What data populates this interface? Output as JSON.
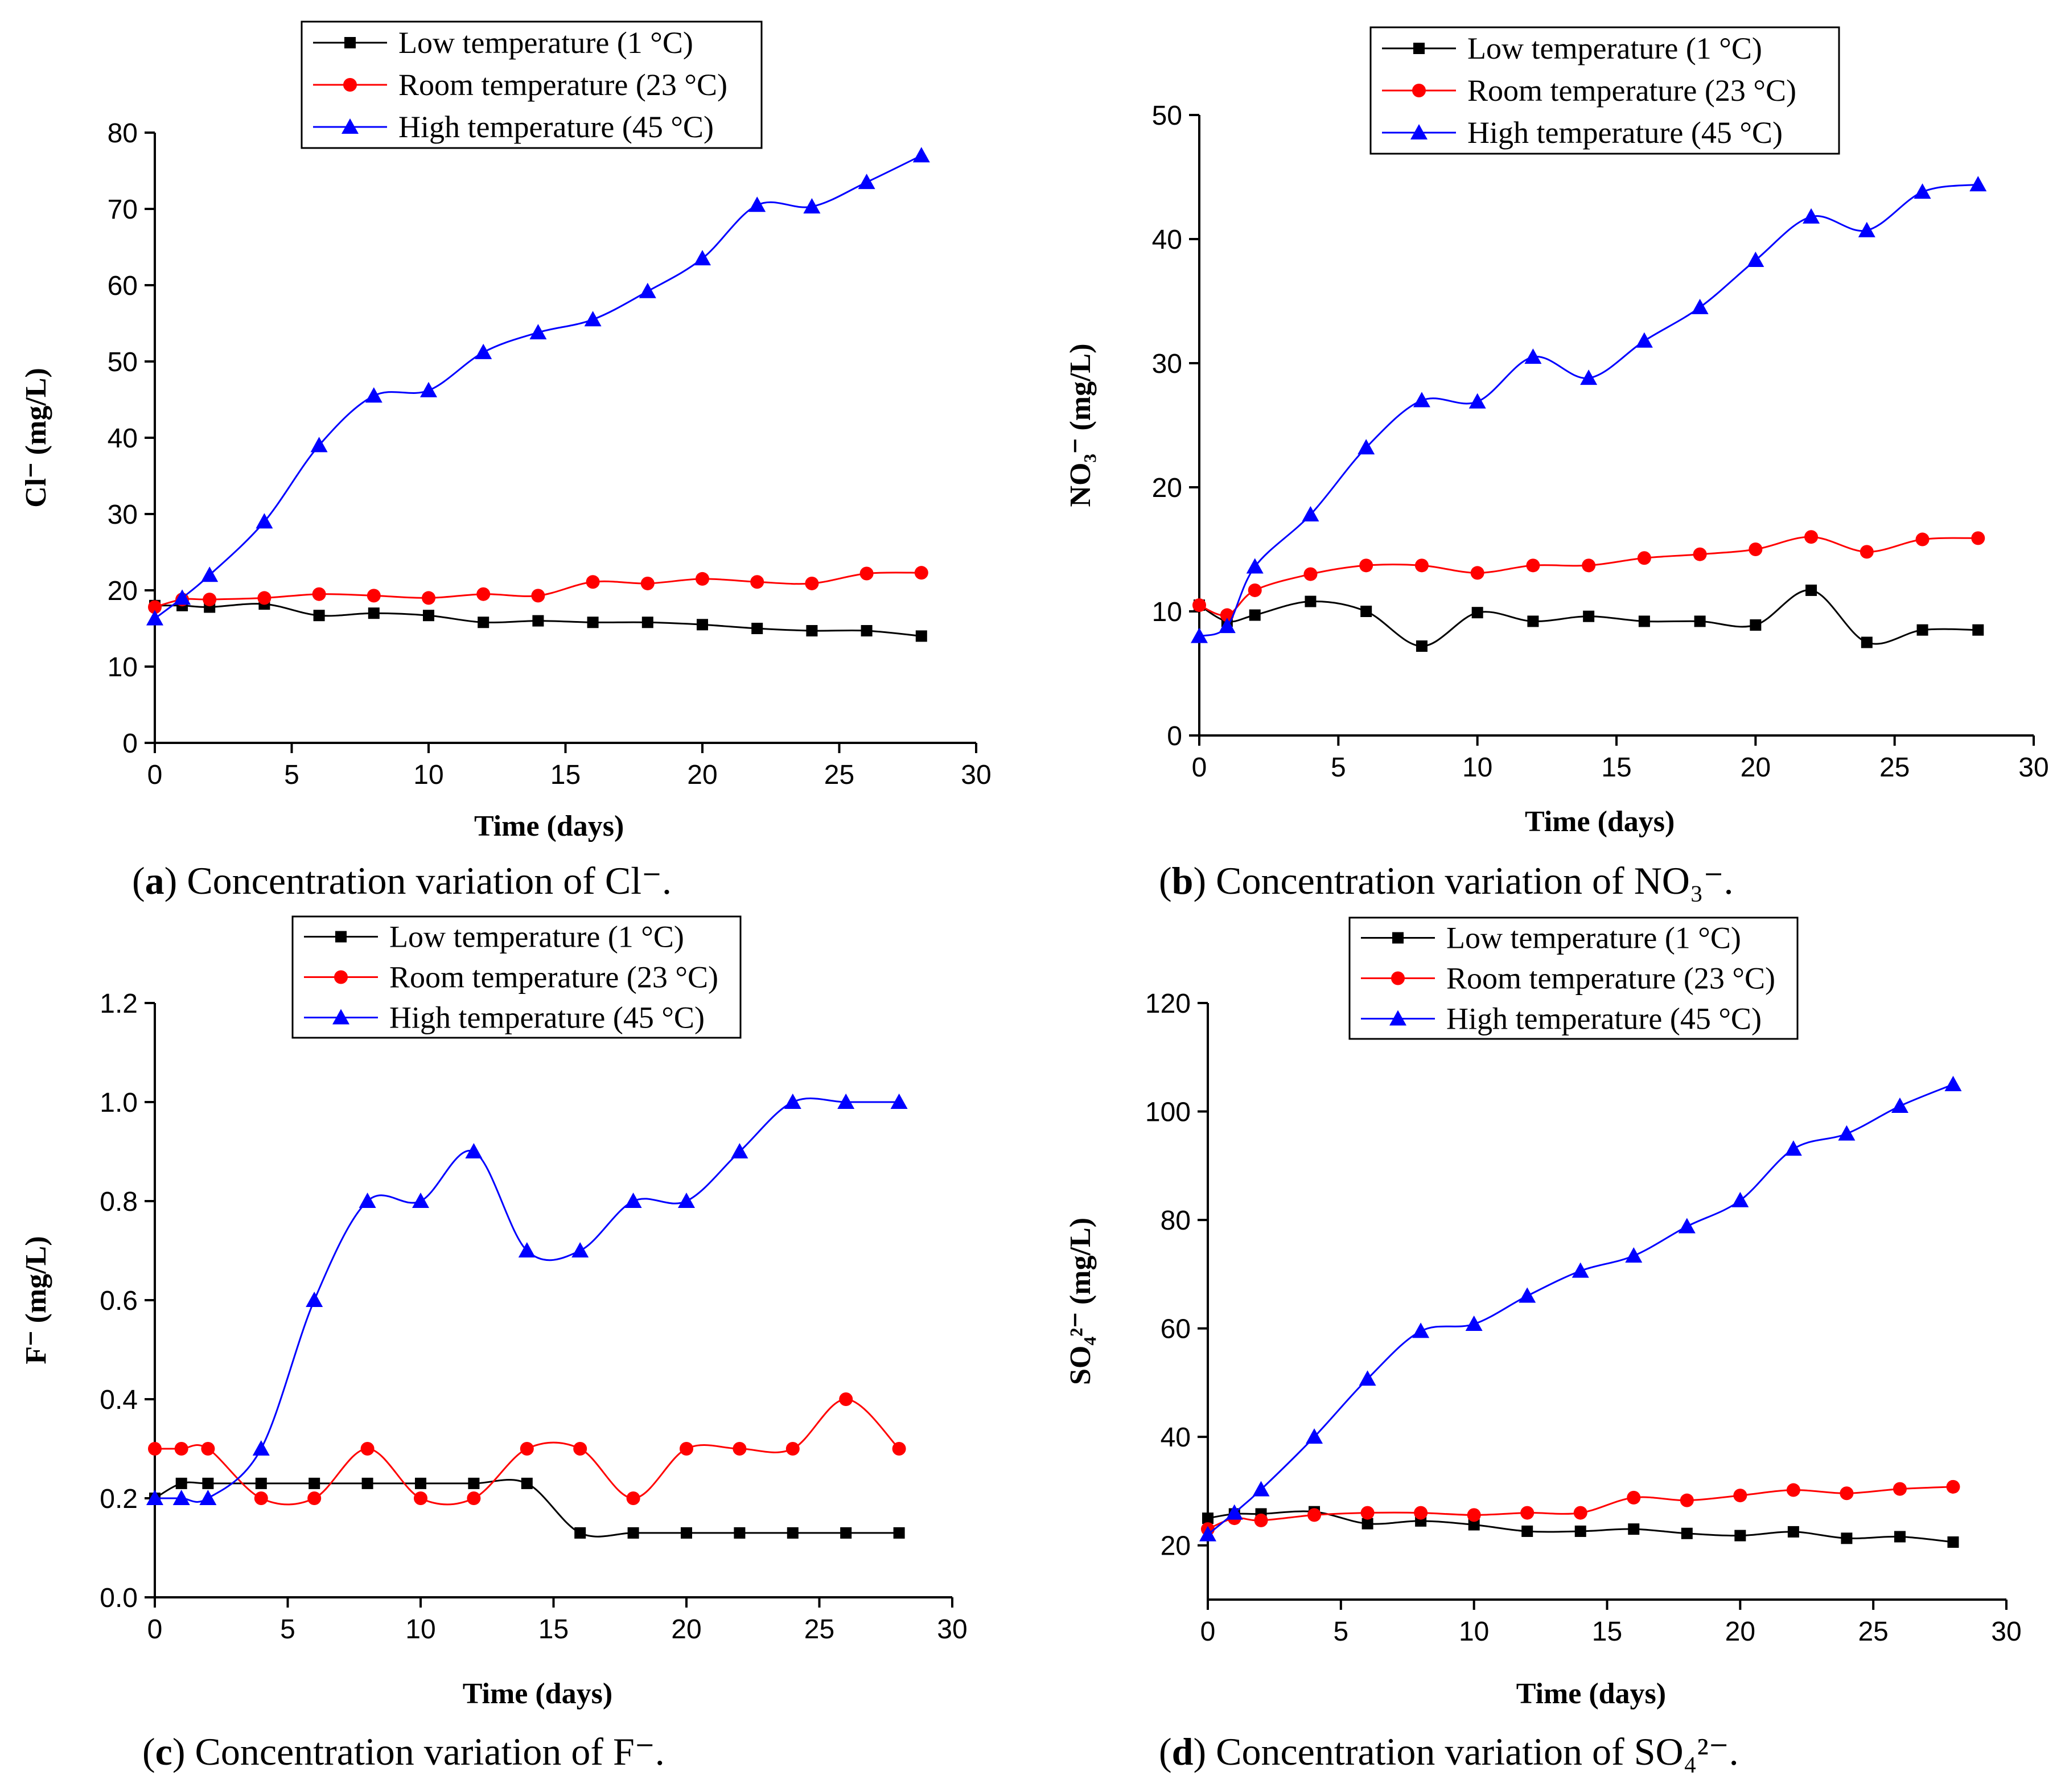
{
  "chart_data": [
    {
      "type": "line",
      "panel": "a",
      "title": "",
      "caption_letter": "a",
      "caption_text": "Concentration variation of Cl⁻.",
      "xlabel": "Time (days)",
      "ylabel": "Cl⁻ (mg/L)",
      "xlim": [
        0,
        30
      ],
      "ylim": [
        0,
        80
      ],
      "xticks": [
        0,
        5,
        10,
        15,
        20,
        25,
        30
      ],
      "yticks": [
        0,
        10,
        20,
        30,
        40,
        50,
        60,
        70,
        80
      ],
      "ytick_labels": [
        "0",
        "10",
        "20",
        "30",
        "40",
        "50",
        "60",
        "70",
        "80"
      ],
      "legend_position": "top-center",
      "series": [
        {
          "name": "Low temperature (1 °C)",
          "color": "#000000",
          "marker": "square",
          "x": [
            0,
            1,
            2,
            4,
            6,
            8,
            10,
            12,
            14,
            16,
            18,
            20,
            22,
            24,
            26,
            28
          ],
          "y": [
            18,
            18,
            17.8,
            18.2,
            16.7,
            17,
            16.7,
            15.8,
            16,
            15.8,
            15.8,
            15.5,
            15,
            14.7,
            14.7,
            14
          ]
        },
        {
          "name": "Room temperature (23 °C)",
          "color": "#ff0000",
          "marker": "circle",
          "x": [
            0,
            1,
            2,
            4,
            6,
            8,
            10,
            12,
            14,
            16,
            18,
            20,
            22,
            24,
            26,
            28
          ],
          "y": [
            17.8,
            18.8,
            18.8,
            19,
            19.5,
            19.3,
            19,
            19.5,
            19.3,
            21.1,
            20.9,
            21.5,
            21.1,
            20.9,
            22.2,
            22.3
          ]
        },
        {
          "name": "High temperature (45 °C)",
          "color": "#0000ff",
          "marker": "triangle",
          "x": [
            0,
            1,
            2,
            4,
            6,
            8,
            10,
            12,
            14,
            16,
            18,
            20,
            22,
            24,
            26,
            28
          ],
          "y": [
            16.3,
            19,
            22,
            29,
            39,
            45.5,
            46.2,
            51.2,
            53.8,
            55.5,
            59.2,
            63.5,
            70.5,
            70.3,
            73.5,
            77
          ]
        }
      ]
    },
    {
      "type": "line",
      "panel": "b",
      "title": "",
      "caption_letter": "b",
      "caption_text": "Concentration variation of NO₃⁻.",
      "xlabel": "Time (days)",
      "ylabel": "NO₃⁻ (mg/L)",
      "xlim": [
        0,
        30
      ],
      "ylim": [
        0,
        50
      ],
      "xticks": [
        0,
        5,
        10,
        15,
        20,
        25,
        30
      ],
      "yticks": [
        0,
        10,
        20,
        30,
        40,
        50
      ],
      "ytick_labels": [
        "0",
        "10",
        "20",
        "30",
        "40",
        "50"
      ],
      "legend_position": "top-center",
      "series": [
        {
          "name": "Low temperature (1 °C)",
          "color": "#000000",
          "marker": "square",
          "x": [
            0,
            1,
            2,
            4,
            6,
            8,
            10,
            12,
            14,
            16,
            18,
            20,
            22,
            24,
            26,
            28
          ],
          "y": [
            10.5,
            9.2,
            9.7,
            10.8,
            10,
            7.2,
            9.9,
            9.2,
            9.6,
            9.2,
            9.2,
            8.9,
            11.7,
            7.5,
            8.5,
            8.5
          ]
        },
        {
          "name": "Room temperature (23 °C)",
          "color": "#ff0000",
          "marker": "circle",
          "x": [
            0,
            1,
            2,
            4,
            6,
            8,
            10,
            12,
            14,
            16,
            18,
            20,
            22,
            24,
            26,
            28
          ],
          "y": [
            10.5,
            9.7,
            11.7,
            13,
            13.7,
            13.7,
            13.1,
            13.7,
            13.7,
            14.3,
            14.6,
            15,
            16,
            14.8,
            15.8,
            15.9
          ]
        },
        {
          "name": "High temperature (45 °C)",
          "color": "#0000ff",
          "marker": "triangle",
          "x": [
            0,
            1,
            2,
            4,
            6,
            8,
            10,
            12,
            14,
            16,
            18,
            20,
            22,
            24,
            26,
            28
          ],
          "y": [
            8,
            8.8,
            13.6,
            17.8,
            23.2,
            27,
            26.9,
            30.5,
            28.8,
            31.8,
            34.5,
            38.3,
            41.8,
            40.7,
            43.8,
            44.4
          ]
        }
      ]
    },
    {
      "type": "line",
      "panel": "c",
      "title": "",
      "caption_letter": "c",
      "caption_text": "Concentration variation of F⁻.",
      "xlabel": "Time (days)",
      "ylabel": "F⁻ (mg/L)",
      "xlim": [
        0,
        30
      ],
      "ylim": [
        0,
        1.2
      ],
      "xticks": [
        0,
        5,
        10,
        15,
        20,
        25,
        30
      ],
      "yticks": [
        0,
        0.2,
        0.4,
        0.6,
        0.8,
        1.0,
        1.2
      ],
      "ytick_labels": [
        "0.0",
        "0.2",
        "0.4",
        "0.6",
        "0.8",
        "1.0",
        "1.2"
      ],
      "legend_position": "top-center",
      "series": [
        {
          "name": "Low temperature (1 °C)",
          "color": "#000000",
          "marker": "square",
          "x": [
            0,
            1,
            2,
            4,
            6,
            8,
            10,
            12,
            14,
            16,
            18,
            20,
            22,
            24,
            26,
            28
          ],
          "y": [
            0.2,
            0.23,
            0.23,
            0.23,
            0.23,
            0.23,
            0.23,
            0.23,
            0.23,
            0.13,
            0.13,
            0.13,
            0.13,
            0.13,
            0.13,
            0.13
          ]
        },
        {
          "name": "Room temperature (23 °C)",
          "color": "#ff0000",
          "marker": "circle",
          "x": [
            0,
            1,
            2,
            4,
            6,
            8,
            10,
            12,
            14,
            16,
            18,
            20,
            22,
            24,
            26,
            28
          ],
          "y": [
            0.3,
            0.3,
            0.3,
            0.2,
            0.2,
            0.3,
            0.2,
            0.2,
            0.3,
            0.3,
            0.2,
            0.3,
            0.3,
            0.3,
            0.4,
            0.3
          ]
        },
        {
          "name": "High temperature (45 °C)",
          "color": "#0000ff",
          "marker": "triangle",
          "x": [
            0,
            1,
            2,
            4,
            6,
            8,
            10,
            12,
            14,
            16,
            18,
            20,
            22,
            24,
            26,
            28
          ],
          "y": [
            0.2,
            0.2,
            0.2,
            0.3,
            0.6,
            0.8,
            0.8,
            0.9,
            0.7,
            0.7,
            0.8,
            0.8,
            0.9,
            1.0,
            1.0,
            1.0
          ]
        }
      ]
    },
    {
      "type": "line",
      "panel": "d",
      "title": "",
      "caption_letter": "d",
      "caption_text": "Concentration variation of SO₄²⁻.",
      "xlabel": "Time (days)",
      "ylabel": "SO₄²⁻ (mg/L)",
      "xlim": [
        0,
        30
      ],
      "ylim": [
        10,
        120
      ],
      "xticks": [
        0,
        5,
        10,
        15,
        20,
        25,
        30
      ],
      "yticks": [
        20,
        40,
        60,
        80,
        100,
        120
      ],
      "ytick_labels": [
        "20",
        "40",
        "60",
        "80",
        "100",
        "120"
      ],
      "legend_position": "top-center",
      "series": [
        {
          "name": "Low temperature (1 °C)",
          "color": "#000000",
          "marker": "square",
          "x": [
            0,
            1,
            2,
            4,
            6,
            8,
            10,
            12,
            14,
            16,
            18,
            20,
            22,
            24,
            26,
            28
          ],
          "y": [
            25,
            25.8,
            25.8,
            26.2,
            24,
            24.5,
            23.8,
            22.6,
            22.6,
            23,
            22.2,
            21.8,
            22.5,
            21.3,
            21.6,
            20.6
          ]
        },
        {
          "name": "Room temperature (23 °C)",
          "color": "#ff0000",
          "marker": "circle",
          "x": [
            0,
            1,
            2,
            4,
            6,
            8,
            10,
            12,
            14,
            16,
            18,
            20,
            22,
            24,
            26,
            28
          ],
          "y": [
            23,
            25,
            24.6,
            25.6,
            26,
            26,
            25.6,
            26,
            26,
            28.8,
            28.3,
            29.2,
            30.2,
            29.6,
            30.4,
            30.8
          ]
        },
        {
          "name": "High temperature (45 °C)",
          "color": "#0000ff",
          "marker": "triangle",
          "x": [
            0,
            1,
            2,
            4,
            6,
            8,
            10,
            12,
            14,
            16,
            18,
            20,
            22,
            24,
            26,
            28
          ],
          "y": [
            22,
            26,
            30.3,
            40,
            50.7,
            59.5,
            60.8,
            66,
            70.6,
            73.4,
            78.8,
            83.6,
            93.1,
            95.9,
            101,
            105
          ]
        }
      ]
    }
  ]
}
